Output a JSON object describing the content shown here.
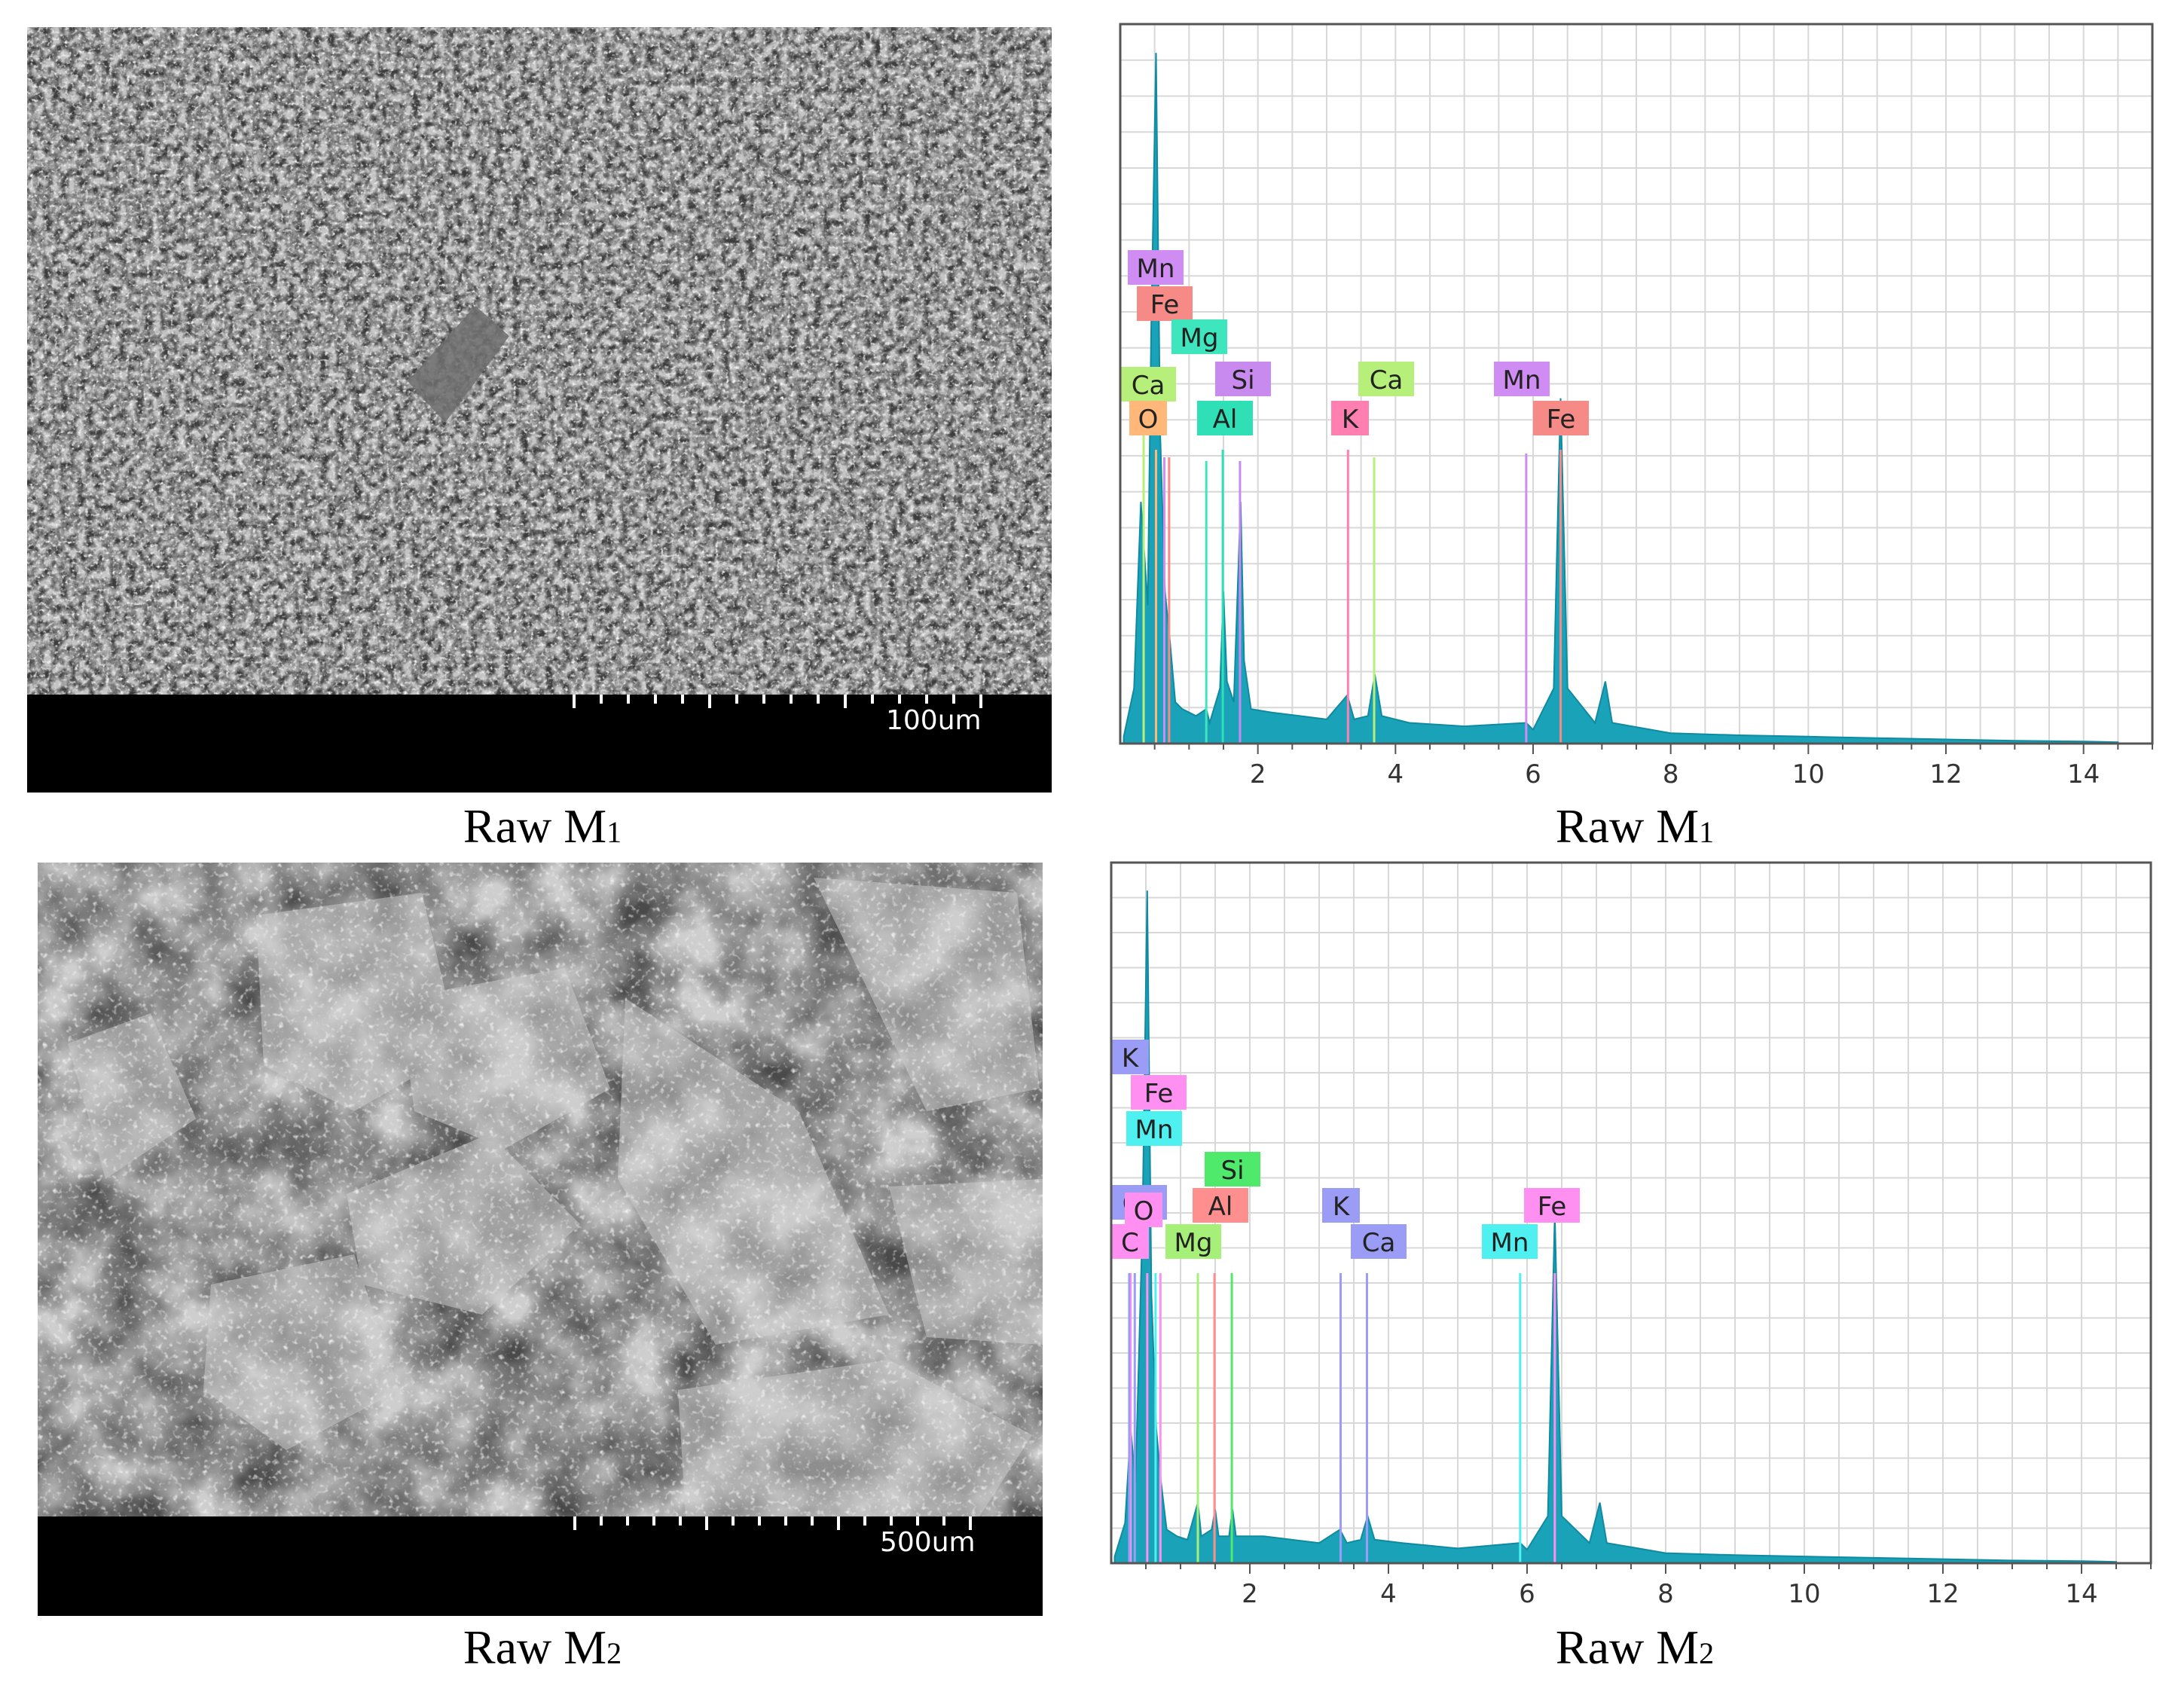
{
  "panels": {
    "sem_m1": {
      "scale_label": "100um",
      "caption_main": "Raw M",
      "caption_sub": "1"
    },
    "sem_m2": {
      "scale_label": "500um",
      "caption_main": "Raw M",
      "caption_sub": "2"
    },
    "eds_m1": {
      "caption_main": "Raw M",
      "caption_sub": "1"
    },
    "eds_m2": {
      "caption_main": "Raw M",
      "caption_sub": "2"
    }
  },
  "colors": {
    "spectrum_fill": "#1aa3b8",
    "grid": "#d8d8d8",
    "axis": "#555555"
  },
  "chart_data": [
    {
      "type": "area",
      "id": "eds_m1",
      "xlabel": "",
      "ylabel": "",
      "xlim": [
        0,
        15
      ],
      "x_ticks": [
        2,
        4,
        6,
        8,
        10,
        12,
        14
      ],
      "grid": true,
      "spectrum": [
        [
          0.05,
          0.01
        ],
        [
          0.2,
          0.08
        ],
        [
          0.3,
          0.35
        ],
        [
          0.4,
          0.2
        ],
        [
          0.45,
          0.6
        ],
        [
          0.52,
          1.0
        ],
        [
          0.58,
          0.45
        ],
        [
          0.65,
          0.22
        ],
        [
          0.72,
          0.15
        ],
        [
          0.8,
          0.06
        ],
        [
          0.9,
          0.05
        ],
        [
          1.0,
          0.045
        ],
        [
          1.1,
          0.04
        ],
        [
          1.25,
          0.05
        ],
        [
          1.3,
          0.03
        ],
        [
          1.45,
          0.08
        ],
        [
          1.5,
          0.22
        ],
        [
          1.55,
          0.09
        ],
        [
          1.65,
          0.06
        ],
        [
          1.75,
          0.35
        ],
        [
          1.8,
          0.12
        ],
        [
          1.9,
          0.05
        ],
        [
          2.2,
          0.045
        ],
        [
          2.6,
          0.04
        ],
        [
          3.0,
          0.035
        ],
        [
          3.3,
          0.07
        ],
        [
          3.4,
          0.035
        ],
        [
          3.6,
          0.04
        ],
        [
          3.7,
          0.1
        ],
        [
          3.8,
          0.04
        ],
        [
          4.2,
          0.03
        ],
        [
          5.0,
          0.025
        ],
        [
          5.9,
          0.03
        ],
        [
          6.0,
          0.02
        ],
        [
          6.3,
          0.08
        ],
        [
          6.4,
          0.5
        ],
        [
          6.5,
          0.08
        ],
        [
          6.9,
          0.03
        ],
        [
          7.05,
          0.09
        ],
        [
          7.15,
          0.03
        ],
        [
          8.0,
          0.015
        ],
        [
          9.0,
          0.012
        ],
        [
          10.0,
          0.01
        ],
        [
          11.0,
          0.008
        ],
        [
          12.0,
          0.006
        ],
        [
          13.0,
          0.004
        ],
        [
          14.0,
          0.003
        ],
        [
          14.5,
          0.002
        ]
      ],
      "peaks": [
        {
          "element": "Ca",
          "x": 0.34,
          "color": "#b6f07a"
        },
        {
          "element": "O",
          "x": 0.52,
          "color": "#ffb879"
        },
        {
          "element": "Mn",
          "x": 0.64,
          "color": "#cf8cf2"
        },
        {
          "element": "Fe",
          "x": 0.71,
          "color": "#f58a87"
        },
        {
          "element": "Mg",
          "x": 1.25,
          "color": "#3ee6bd"
        },
        {
          "element": "Al",
          "x": 1.49,
          "color": "#2fe0b7"
        },
        {
          "element": "Si",
          "x": 1.74,
          "color": "#c98af0"
        },
        {
          "element": "K",
          "x": 3.31,
          "color": "#ff7fb0"
        },
        {
          "element": "Ca",
          "x": 3.69,
          "color": "#b6f07a"
        },
        {
          "element": "Mn",
          "x": 5.9,
          "color": "#cf8cf2"
        },
        {
          "element": "Fe",
          "x": 6.4,
          "color": "#f58a87"
        }
      ]
    },
    {
      "type": "area",
      "id": "eds_m2",
      "xlabel": "",
      "ylabel": "",
      "xlim": [
        0,
        15
      ],
      "x_ticks": [
        2,
        4,
        6,
        8,
        10,
        12,
        14
      ],
      "grid": true,
      "spectrum": [
        [
          0.05,
          0.01
        ],
        [
          0.2,
          0.06
        ],
        [
          0.28,
          0.2
        ],
        [
          0.35,
          0.12
        ],
        [
          0.45,
          0.5
        ],
        [
          0.52,
          1.0
        ],
        [
          0.58,
          0.4
        ],
        [
          0.65,
          0.2
        ],
        [
          0.72,
          0.12
        ],
        [
          0.8,
          0.05
        ],
        [
          0.95,
          0.04
        ],
        [
          1.1,
          0.035
        ],
        [
          1.25,
          0.09
        ],
        [
          1.3,
          0.04
        ],
        [
          1.45,
          0.05
        ],
        [
          1.5,
          0.08
        ],
        [
          1.55,
          0.04
        ],
        [
          1.7,
          0.04
        ],
        [
          1.75,
          0.08
        ],
        [
          1.8,
          0.04
        ],
        [
          2.2,
          0.04
        ],
        [
          2.6,
          0.035
        ],
        [
          3.0,
          0.03
        ],
        [
          3.3,
          0.05
        ],
        [
          3.4,
          0.03
        ],
        [
          3.6,
          0.035
        ],
        [
          3.7,
          0.07
        ],
        [
          3.8,
          0.035
        ],
        [
          4.2,
          0.03
        ],
        [
          5.0,
          0.022
        ],
        [
          5.9,
          0.03
        ],
        [
          6.0,
          0.02
        ],
        [
          6.3,
          0.07
        ],
        [
          6.4,
          0.52
        ],
        [
          6.5,
          0.07
        ],
        [
          6.9,
          0.03
        ],
        [
          7.05,
          0.09
        ],
        [
          7.15,
          0.03
        ],
        [
          8.0,
          0.015
        ],
        [
          9.0,
          0.012
        ],
        [
          10.0,
          0.01
        ],
        [
          11.0,
          0.008
        ],
        [
          12.0,
          0.006
        ],
        [
          13.0,
          0.004
        ],
        [
          14.0,
          0.003
        ],
        [
          14.5,
          0.002
        ]
      ],
      "peaks": [
        {
          "element": "C",
          "x": 0.28,
          "color": "#ff8ff0"
        },
        {
          "element": "Ca",
          "x": 0.34,
          "color": "#9b9cf5"
        },
        {
          "element": "K",
          "x": 0.26,
          "color": "#9b9cf5"
        },
        {
          "element": "O",
          "x": 0.52,
          "color": "#ff8ff0"
        },
        {
          "element": "Mn",
          "x": 0.64,
          "color": "#4ef0f0"
        },
        {
          "element": "Fe",
          "x": 0.71,
          "color": "#ff8ff0"
        },
        {
          "element": "Mg",
          "x": 1.25,
          "color": "#a6f07a"
        },
        {
          "element": "Al",
          "x": 1.49,
          "color": "#ff8f8f"
        },
        {
          "element": "Si",
          "x": 1.74,
          "color": "#4fe96b"
        },
        {
          "element": "K",
          "x": 3.31,
          "color": "#9b9cf5"
        },
        {
          "element": "Ca",
          "x": 3.69,
          "color": "#9b9cf5"
        },
        {
          "element": "Mn",
          "x": 5.9,
          "color": "#4ef0f0"
        },
        {
          "element": "Fe",
          "x": 6.4,
          "color": "#ff8ff0"
        }
      ]
    }
  ]
}
